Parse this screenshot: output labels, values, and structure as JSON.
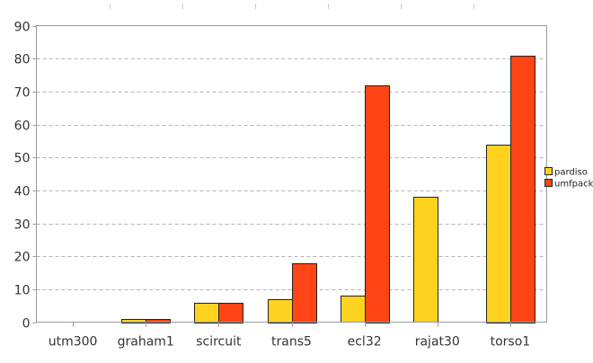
{
  "chart_data": {
    "type": "bar",
    "title": "",
    "xlabel": "",
    "ylabel": "",
    "categories": [
      "utm300",
      "graham1",
      "scircuit",
      "trans5",
      "ecl32",
      "rajat30",
      "torso1"
    ],
    "series": [
      {
        "name": "pardiso",
        "color": "#ffd21f",
        "values": [
          0,
          1,
          6,
          7,
          8,
          38,
          54
        ]
      },
      {
        "name": "umfpack",
        "color": "#ff4515",
        "values": [
          0,
          1,
          6,
          18,
          72,
          0,
          81
        ]
      }
    ],
    "ylim": [
      0,
      90
    ],
    "yticks": [
      0,
      10,
      20,
      30,
      40,
      50,
      60,
      70,
      80,
      90
    ],
    "grid": true,
    "legend_position": "right"
  }
}
